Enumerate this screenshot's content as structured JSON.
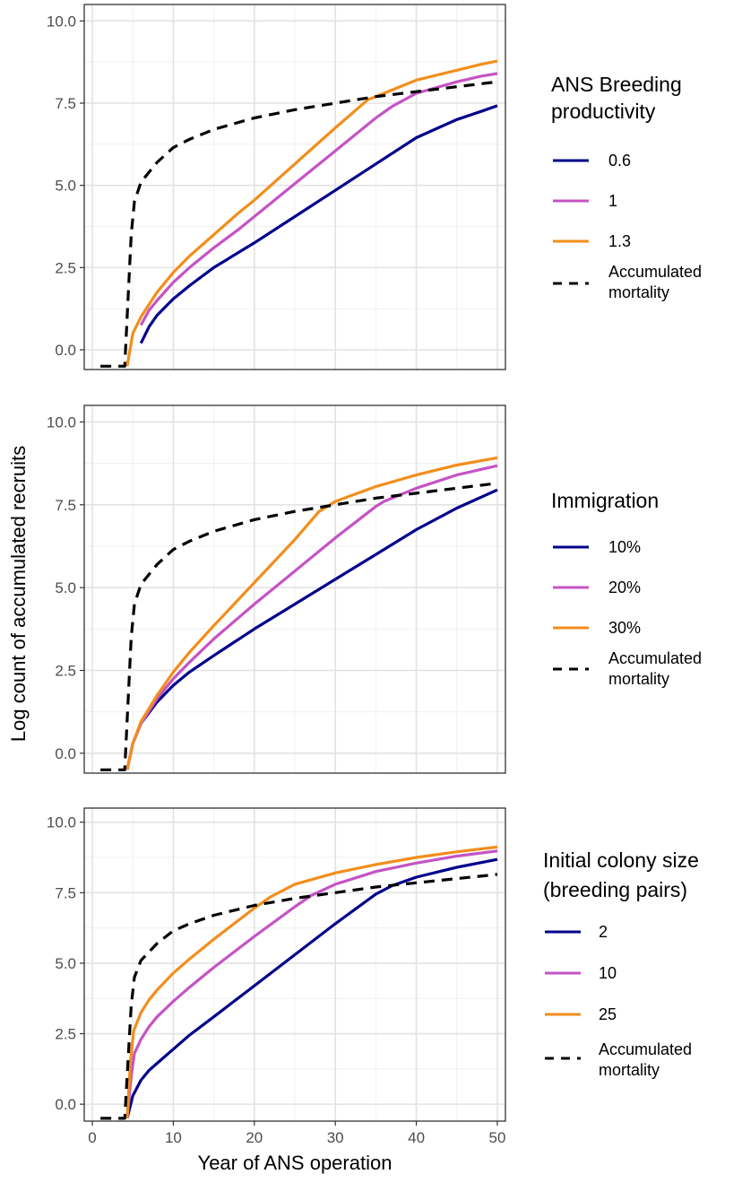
{
  "chart_data": {
    "type": "line",
    "xlabel": "Year of ANS operation",
    "ylabel": "Log count of accumulated recruits",
    "xlim": [
      -1,
      51
    ],
    "ylim": [
      -0.6,
      10.5
    ],
    "x_ticks": [
      "0",
      "10",
      "20",
      "30",
      "40",
      "50"
    ],
    "y_ticks": [
      "0.0",
      "2.5",
      "5.0",
      "7.5",
      "10.0"
    ],
    "grid": true,
    "legend_position": "right",
    "panels": [
      {
        "legend_title": [
          "ANS Breeding",
          "productivity"
        ],
        "series": [
          {
            "name": "0.6",
            "color": "#00008B",
            "style": "solid",
            "x": [
              6,
              7,
              8,
              10,
              12,
              15,
              18,
              20,
              25,
              30,
              35,
              40,
              45,
              48,
              50
            ],
            "y": [
              0.2,
              0.7,
              1.05,
              1.55,
              1.95,
              2.5,
              2.95,
              3.25,
              4.05,
              4.85,
              5.65,
              6.45,
              7.0,
              7.25,
              7.42
            ]
          },
          {
            "name": "1",
            "color": "#C553C5",
            "style": "solid",
            "x": [
              6,
              7,
              8,
              10,
              12,
              15,
              18,
              20,
              25,
              30,
              35,
              37,
              40,
              45,
              48,
              50
            ],
            "y": [
              0.75,
              1.2,
              1.5,
              2.05,
              2.5,
              3.1,
              3.65,
              4.05,
              5.05,
              6.05,
              7.05,
              7.4,
              7.8,
              8.15,
              8.32,
              8.4
            ]
          },
          {
            "name": "1.3",
            "color": "#F28E1C",
            "style": "solid",
            "x": [
              4.3,
              5,
              6,
              8,
              10,
              12,
              15,
              18,
              20,
              25,
              30,
              34,
              36,
              40,
              45,
              48,
              50
            ],
            "y": [
              -0.5,
              0.5,
              1.0,
              1.75,
              2.35,
              2.85,
              3.5,
              4.15,
              4.55,
              5.65,
              6.75,
              7.6,
              7.8,
              8.2,
              8.5,
              8.68,
              8.78
            ]
          },
          {
            "name": "Accumulated mortality",
            "color": "#000000",
            "style": "dashed",
            "x": [
              1,
              4,
              4.4,
              4.8,
              5.2,
              6,
              7,
              8,
              10,
              12,
              15,
              20,
              25,
              30,
              35,
              40,
              45,
              50
            ],
            "y": [
              -0.5,
              -0.5,
              1.5,
              3.5,
              4.5,
              5.1,
              5.4,
              5.7,
              6.15,
              6.4,
              6.7,
              7.05,
              7.3,
              7.5,
              7.7,
              7.85,
              8.0,
              8.15
            ]
          }
        ]
      },
      {
        "legend_title": [
          "Immigration"
        ],
        "series": [
          {
            "name": "10%",
            "color": "#00008B",
            "style": "solid",
            "x": [
              4.3,
              5,
              6,
              8,
              10,
              12,
              15,
              20,
              25,
              30,
              35,
              40,
              45,
              50
            ],
            "y": [
              -0.5,
              0.3,
              0.9,
              1.55,
              2.05,
              2.45,
              2.95,
              3.75,
              4.5,
              5.25,
              6.0,
              6.75,
              7.4,
              7.95
            ]
          },
          {
            "name": "20%",
            "color": "#C553C5",
            "style": "solid",
            "x": [
              4.3,
              5,
              6,
              8,
              10,
              12,
              15,
              20,
              25,
              30,
              35,
              36,
              40,
              45,
              50
            ],
            "y": [
              -0.5,
              0.3,
              0.9,
              1.65,
              2.25,
              2.75,
              3.45,
              4.5,
              5.5,
              6.5,
              7.45,
              7.6,
              8.0,
              8.4,
              8.68
            ]
          },
          {
            "name": "30%",
            "color": "#F28E1C",
            "style": "solid",
            "x": [
              4.3,
              5,
              6,
              8,
              10,
              12,
              15,
              20,
              25,
              28,
              30,
              35,
              40,
              45,
              50
            ],
            "y": [
              -0.5,
              0.3,
              0.95,
              1.75,
              2.45,
              3.05,
              3.85,
              5.15,
              6.45,
              7.3,
              7.6,
              8.05,
              8.4,
              8.7,
              8.92
            ]
          },
          {
            "name": "Accumulated mortality",
            "color": "#000000",
            "style": "dashed",
            "x": [
              1,
              4,
              4.4,
              4.8,
              5.2,
              6,
              7,
              8,
              10,
              12,
              15,
              20,
              25,
              30,
              35,
              40,
              45,
              50
            ],
            "y": [
              -0.5,
              -0.5,
              1.5,
              3.5,
              4.5,
              5.1,
              5.4,
              5.7,
              6.15,
              6.4,
              6.7,
              7.05,
              7.3,
              7.5,
              7.7,
              7.85,
              8.0,
              8.15
            ]
          }
        ]
      },
      {
        "legend_title": [
          "Initial colony size",
          "(breeding pairs)"
        ],
        "series": [
          {
            "name": "2",
            "color": "#00008B",
            "style": "solid",
            "x": [
              4.3,
              5,
              6,
              7,
              8,
              10,
              12,
              15,
              20,
              25,
              30,
              35,
              37,
              40,
              45,
              50
            ],
            "y": [
              -0.5,
              0.3,
              0.85,
              1.2,
              1.45,
              1.95,
              2.45,
              3.1,
              4.2,
              5.3,
              6.4,
              7.45,
              7.75,
              8.05,
              8.4,
              8.68
            ]
          },
          {
            "name": "10",
            "color": "#C553C5",
            "style": "solid",
            "x": [
              4.3,
              4.8,
              5.2,
              6,
              7,
              8,
              10,
              12,
              15,
              20,
              25,
              27,
              30,
              35,
              40,
              45,
              50
            ],
            "y": [
              -0.5,
              1.0,
              1.8,
              2.3,
              2.75,
              3.1,
              3.65,
              4.15,
              4.85,
              5.95,
              7.0,
              7.4,
              7.8,
              8.25,
              8.55,
              8.8,
              8.98
            ]
          },
          {
            "name": "25",
            "color": "#F28E1C",
            "style": "solid",
            "x": [
              4.3,
              4.7,
              5.1,
              6,
              7,
              8,
              10,
              12,
              15,
              20,
              22,
              25,
              30,
              35,
              40,
              45,
              50
            ],
            "y": [
              -0.5,
              1.5,
              2.6,
              3.25,
              3.7,
              4.05,
              4.65,
              5.15,
              5.85,
              6.95,
              7.35,
              7.8,
              8.2,
              8.5,
              8.75,
              8.95,
              9.12
            ]
          },
          {
            "name": "Accumulated mortality",
            "color": "#000000",
            "style": "dashed",
            "x": [
              1,
              4,
              4.4,
              4.8,
              5.2,
              6,
              7,
              8,
              10,
              12,
              15,
              20,
              25,
              30,
              35,
              40,
              45,
              50
            ],
            "y": [
              -0.5,
              -0.5,
              1.5,
              3.5,
              4.5,
              5.1,
              5.4,
              5.7,
              6.15,
              6.4,
              6.7,
              7.05,
              7.3,
              7.5,
              7.7,
              7.85,
              8.0,
              8.15
            ]
          }
        ]
      }
    ]
  },
  "legend_labels": {
    "panel1": [
      "0.6",
      "1",
      "1.3",
      "Accumulated",
      "mortality"
    ],
    "panel2": [
      "10%",
      "20%",
      "30%",
      "Accumulated",
      "mortality"
    ],
    "panel3": [
      "2",
      "10",
      "25",
      "Accumulated",
      "mortality"
    ]
  }
}
